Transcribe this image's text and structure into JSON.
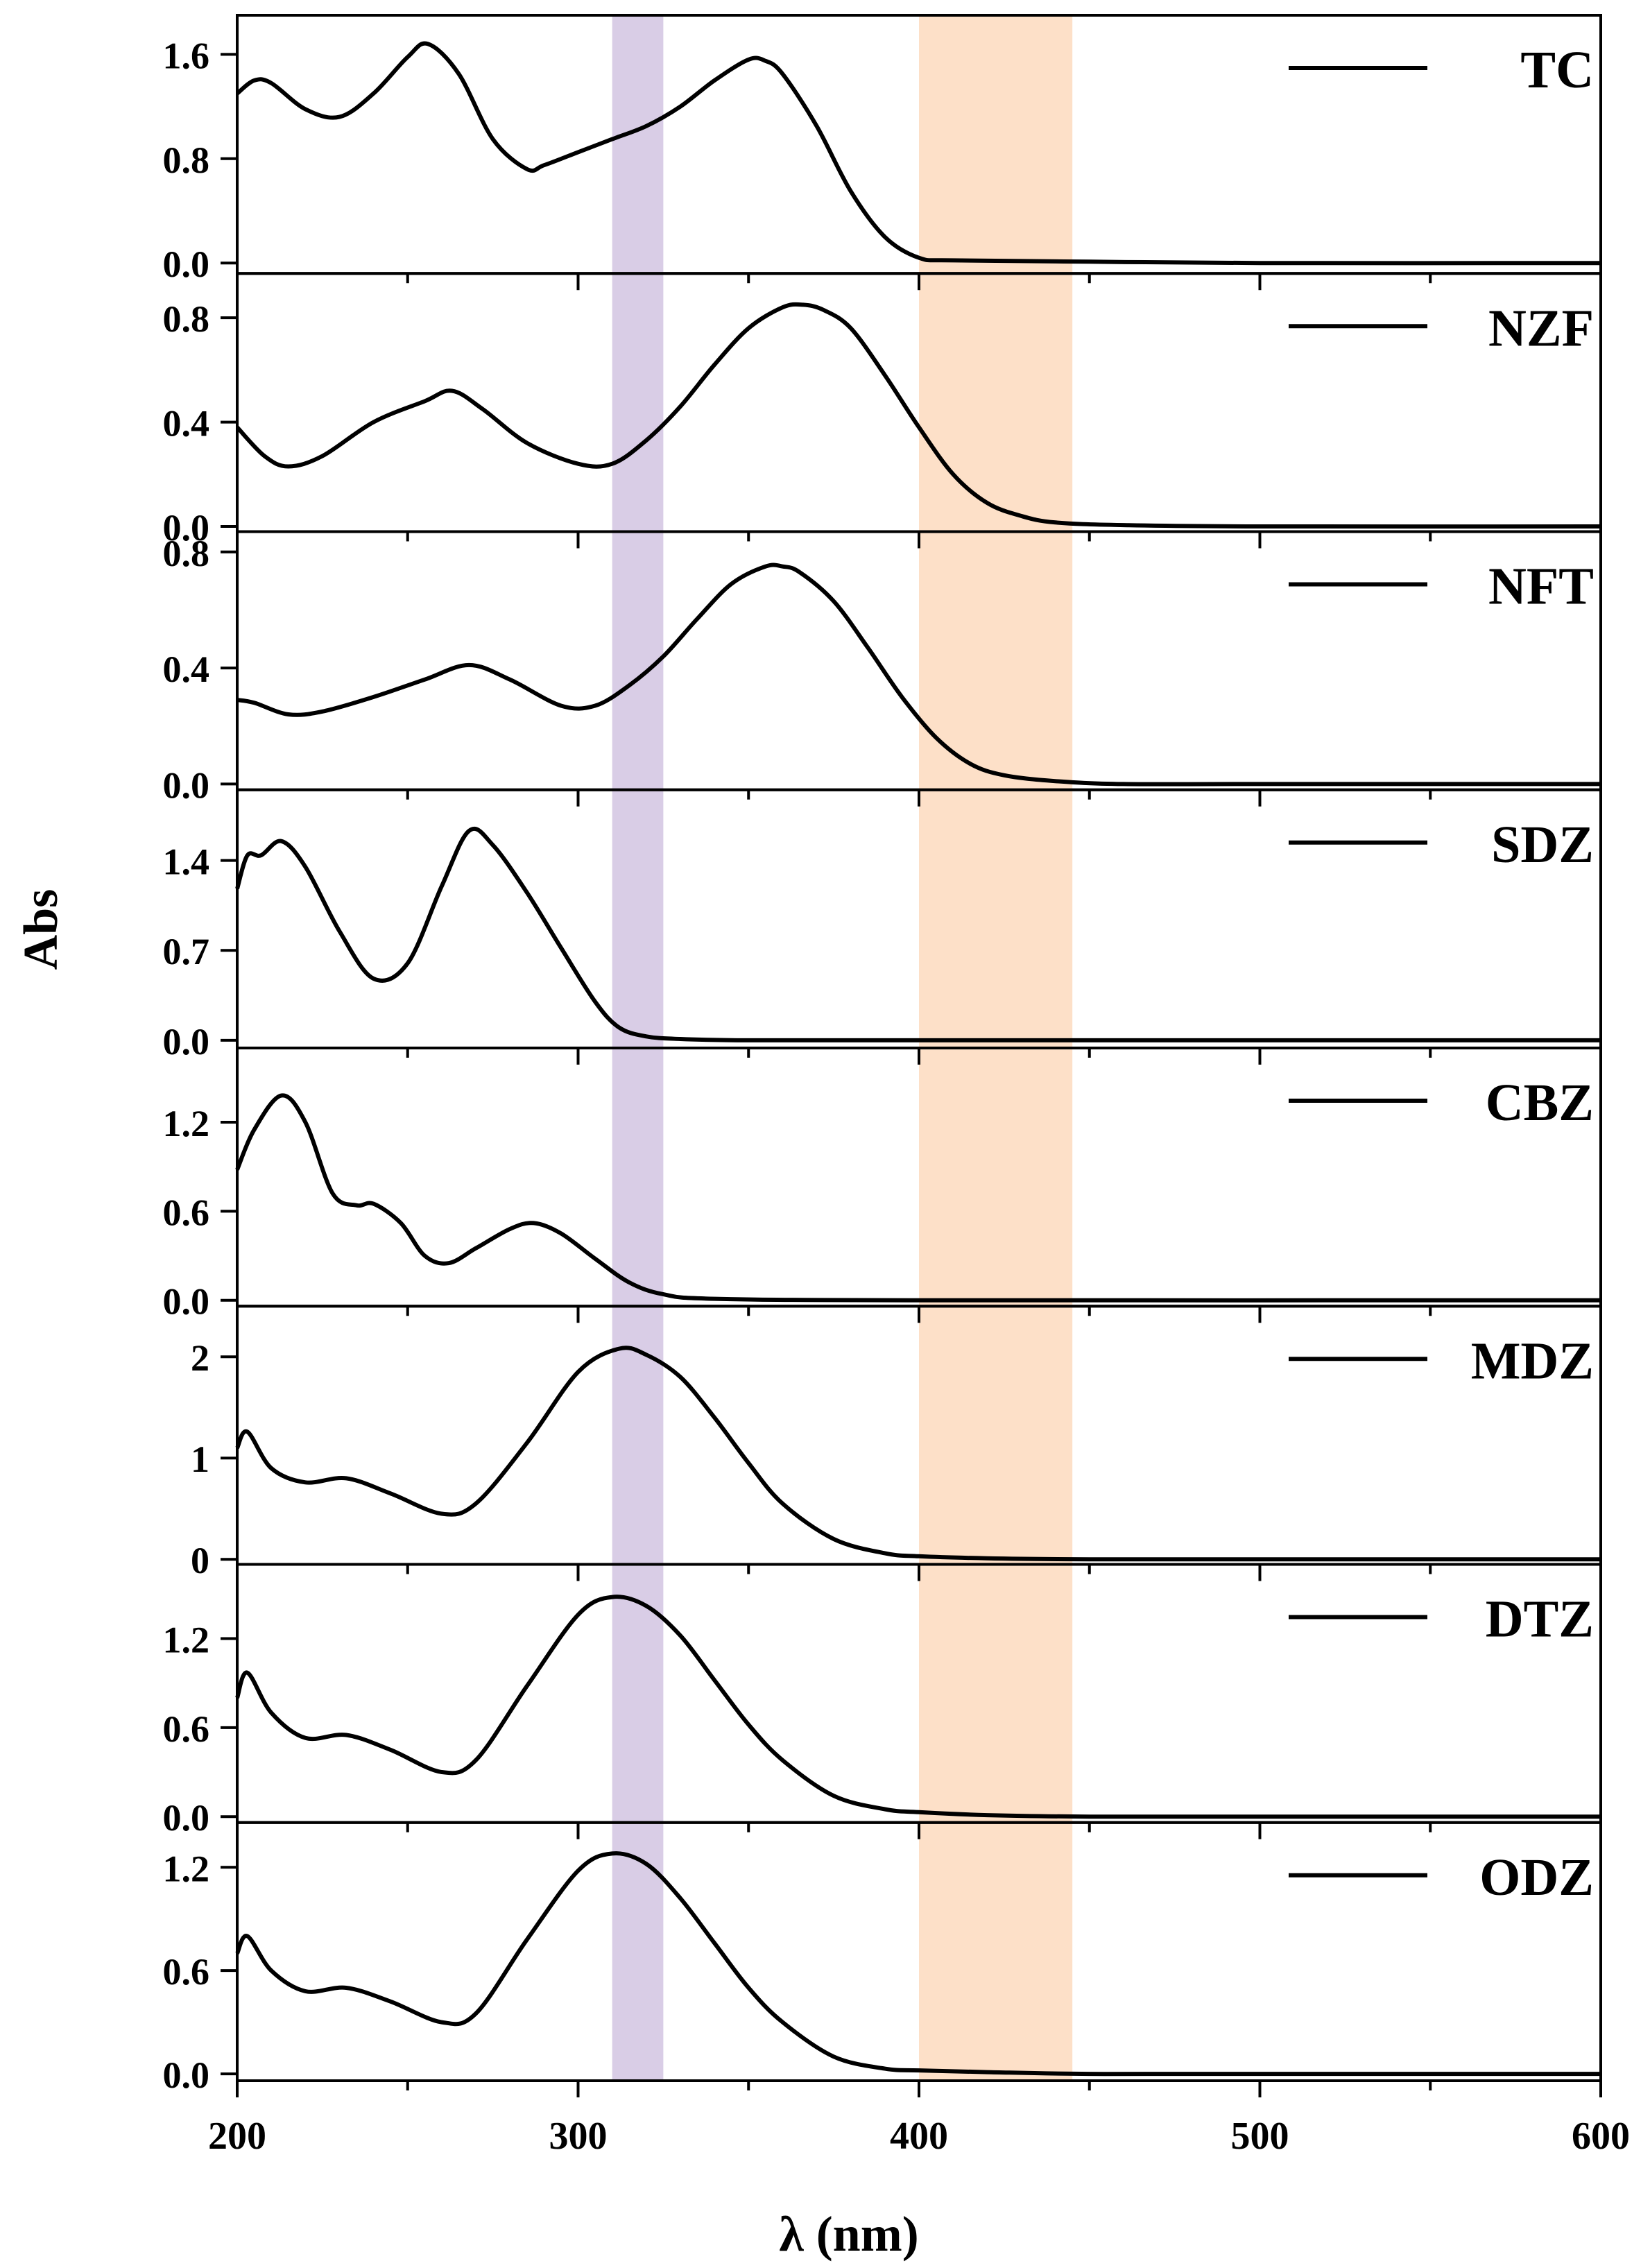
{
  "chart_data": {
    "type": "line",
    "layout": "stacked-panels",
    "xlabel": "λ (nm)",
    "ylabel": "Abs",
    "xlim": [
      200,
      600
    ],
    "xticks": [
      200,
      300,
      400,
      500,
      600
    ],
    "xticks_minor": [
      250,
      350,
      450,
      550
    ],
    "colors": {
      "line": "#000000",
      "frame": "#000000",
      "band_purple": "#d9cde6",
      "band_orange": "#fde0c8"
    },
    "shaded_bands": [
      {
        "name": "purple-band",
        "x_range": [
          310,
          325
        ]
      },
      {
        "name": "orange-band",
        "x_range": [
          400,
          445
        ]
      }
    ],
    "panels": [
      {
        "name": "TC",
        "legend": "TC",
        "ylim": [
          -0.08,
          1.9
        ],
        "yticks": [
          0.0,
          0.8,
          1.6
        ],
        "ytick_labels": [
          "0.0",
          "0.8",
          "1.6"
        ],
        "x": [
          200,
          205,
          210,
          220,
          230,
          240,
          250,
          256,
          265,
          275,
          285,
          290,
          300,
          310,
          320,
          330,
          340,
          350,
          355,
          360,
          370,
          380,
          390,
          400,
          410,
          450,
          500,
          600
        ],
        "y": [
          1.3,
          1.4,
          1.38,
          1.18,
          1.12,
          1.3,
          1.58,
          1.68,
          1.45,
          0.95,
          0.72,
          0.75,
          0.85,
          0.95,
          1.05,
          1.2,
          1.4,
          1.56,
          1.55,
          1.45,
          1.05,
          0.55,
          0.2,
          0.04,
          0.02,
          0.01,
          0.0,
          0.0
        ]
      },
      {
        "name": "NZF",
        "legend": "NZF",
        "ylim": [
          -0.02,
          0.97
        ],
        "yticks": [
          0.0,
          0.4,
          0.8
        ],
        "ytick_labels": [
          "0.0",
          "0.4",
          "0.8"
        ],
        "x": [
          200,
          208,
          215,
          225,
          240,
          255,
          263,
          272,
          285,
          300,
          310,
          320,
          330,
          340,
          350,
          360,
          366,
          372,
          380,
          390,
          400,
          410,
          420,
          430,
          440,
          460,
          500,
          600
        ],
        "y": [
          0.38,
          0.27,
          0.23,
          0.27,
          0.4,
          0.48,
          0.52,
          0.45,
          0.32,
          0.24,
          0.24,
          0.33,
          0.46,
          0.62,
          0.76,
          0.84,
          0.85,
          0.83,
          0.76,
          0.58,
          0.38,
          0.2,
          0.09,
          0.04,
          0.015,
          0.005,
          0.0,
          0.0
        ]
      },
      {
        "name": "NFT",
        "legend": "NFT",
        "ylim": [
          -0.02,
          0.87
        ],
        "yticks": [
          0.0,
          0.4,
          0.8
        ],
        "ytick_labels": [
          "0.0",
          "0.4",
          "0.8"
        ],
        "x": [
          200,
          205,
          215,
          225,
          240,
          255,
          268,
          280,
          295,
          305,
          315,
          325,
          335,
          345,
          355,
          360,
          365,
          375,
          385,
          395,
          405,
          415,
          425,
          440,
          460,
          500,
          600
        ],
        "y": [
          0.29,
          0.28,
          0.24,
          0.25,
          0.3,
          0.36,
          0.41,
          0.36,
          0.27,
          0.27,
          0.34,
          0.44,
          0.57,
          0.69,
          0.75,
          0.75,
          0.73,
          0.63,
          0.47,
          0.3,
          0.16,
          0.07,
          0.03,
          0.01,
          0.0,
          0.0,
          0.0
        ]
      },
      {
        "name": "SDZ",
        "legend": "SDZ",
        "ylim": [
          -0.06,
          1.95
        ],
        "yticks": [
          0.0,
          0.7,
          1.4
        ],
        "ytick_labels": [
          "0.0",
          "0.7",
          "1.4"
        ],
        "x": [
          200,
          203,
          207,
          213,
          220,
          230,
          240,
          250,
          260,
          268,
          275,
          285,
          295,
          305,
          312,
          320,
          330,
          350,
          400,
          500,
          600
        ],
        "y": [
          1.18,
          1.44,
          1.44,
          1.55,
          1.35,
          0.85,
          0.48,
          0.6,
          1.2,
          1.63,
          1.52,
          1.15,
          0.72,
          0.3,
          0.1,
          0.03,
          0.01,
          0.0,
          0.0,
          0.0,
          0.0
        ]
      },
      {
        "name": "CBZ",
        "legend": "CBZ",
        "ylim": [
          -0.04,
          1.7
        ],
        "yticks": [
          0.0,
          0.6,
          1.2
        ],
        "ytick_labels": [
          "0.0",
          "0.6",
          "1.2"
        ],
        "x": [
          200,
          205,
          213,
          220,
          228,
          235,
          240,
          248,
          255,
          262,
          270,
          280,
          287,
          295,
          305,
          315,
          325,
          340,
          400,
          600
        ],
        "y": [
          0.88,
          1.15,
          1.38,
          1.2,
          0.72,
          0.64,
          0.65,
          0.52,
          0.3,
          0.25,
          0.35,
          0.48,
          0.52,
          0.45,
          0.28,
          0.12,
          0.04,
          0.01,
          0.0,
          0.0
        ]
      },
      {
        "name": "MDZ",
        "legend": "MDZ",
        "ylim": [
          -0.05,
          2.5
        ],
        "yticks": [
          0,
          1,
          2
        ],
        "ytick_labels": [
          "0",
          "1",
          "2"
        ],
        "x": [
          200,
          203,
          210,
          220,
          232,
          245,
          260,
          270,
          285,
          300,
          312,
          320,
          330,
          340,
          350,
          360,
          375,
          390,
          400,
          420,
          450,
          500,
          600
        ],
        "y": [
          1.1,
          1.26,
          0.9,
          0.76,
          0.8,
          0.65,
          0.45,
          0.55,
          1.15,
          1.85,
          2.08,
          2.02,
          1.8,
          1.4,
          0.95,
          0.55,
          0.2,
          0.06,
          0.03,
          0.01,
          0.0,
          0.0,
          0.0
        ]
      },
      {
        "name": "DTZ",
        "legend": "DTZ",
        "ylim": [
          -0.04,
          1.7
        ],
        "yticks": [
          0.0,
          0.6,
          1.2
        ],
        "ytick_labels": [
          "0.0",
          "0.6",
          "1.2"
        ],
        "x": [
          200,
          203,
          210,
          220,
          232,
          245,
          260,
          270,
          285,
          300,
          310,
          320,
          330,
          340,
          350,
          360,
          375,
          390,
          400,
          420,
          450,
          500,
          600
        ],
        "y": [
          0.8,
          0.97,
          0.7,
          0.53,
          0.55,
          0.45,
          0.3,
          0.38,
          0.88,
          1.36,
          1.48,
          1.42,
          1.22,
          0.92,
          0.62,
          0.38,
          0.14,
          0.05,
          0.03,
          0.01,
          0.0,
          0.0,
          0.0
        ]
      },
      {
        "name": "ODZ",
        "legend": "ODZ",
        "ylim": [
          -0.04,
          1.46
        ],
        "yticks": [
          0.0,
          0.6,
          1.2
        ],
        "ytick_labels": [
          "0.0",
          "0.6",
          "1.2"
        ],
        "x": [
          200,
          203,
          210,
          220,
          232,
          245,
          260,
          270,
          285,
          300,
          310,
          320,
          330,
          340,
          350,
          360,
          375,
          390,
          400,
          420,
          450,
          500,
          600
        ],
        "y": [
          0.7,
          0.8,
          0.6,
          0.48,
          0.5,
          0.42,
          0.3,
          0.35,
          0.78,
          1.18,
          1.28,
          1.22,
          1.02,
          0.76,
          0.5,
          0.3,
          0.1,
          0.03,
          0.02,
          0.01,
          0.0,
          0.0,
          0.0
        ]
      }
    ]
  }
}
